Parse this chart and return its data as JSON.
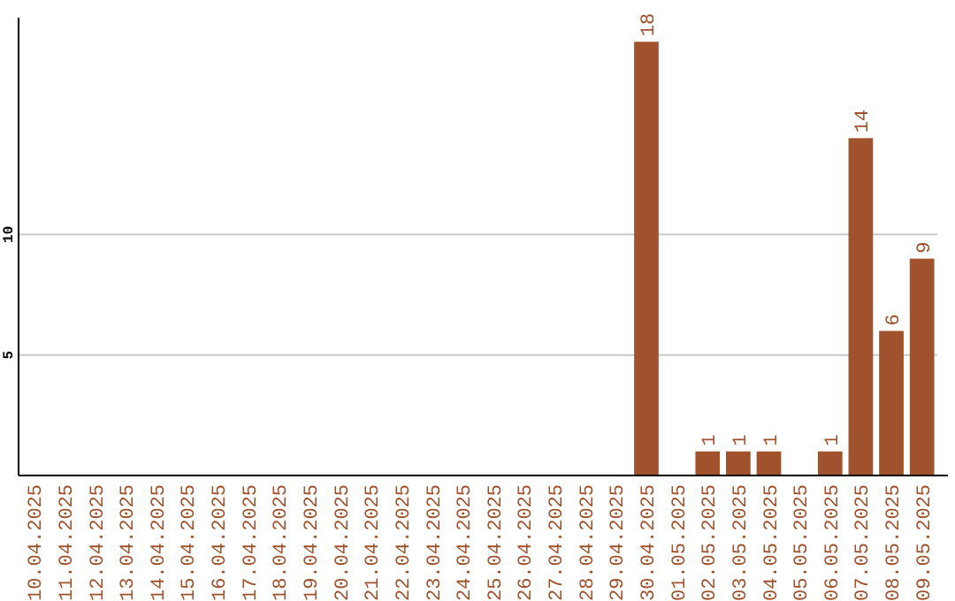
{
  "chart_data": {
    "type": "bar",
    "categories": [
      "10.04.2025",
      "11.04.2025",
      "12.04.2025",
      "13.04.2025",
      "14.04.2025",
      "15.04.2025",
      "16.04.2025",
      "17.04.2025",
      "18.04.2025",
      "19.04.2025",
      "20.04.2025",
      "21.04.2025",
      "22.04.2025",
      "23.04.2025",
      "24.04.2025",
      "25.04.2025",
      "26.04.2025",
      "27.04.2025",
      "28.04.2025",
      "29.04.2025",
      "30.04.2025",
      "01.05.2025",
      "02.05.2025",
      "03.05.2025",
      "04.05.2025",
      "05.05.2025",
      "06.05.2025",
      "07.05.2025",
      "08.05.2025",
      "09.05.2025"
    ],
    "values": [
      null,
      null,
      null,
      null,
      null,
      null,
      null,
      null,
      null,
      null,
      null,
      null,
      null,
      null,
      null,
      null,
      null,
      null,
      null,
      null,
      18,
      null,
      1,
      1,
      1,
      null,
      1,
      14,
      6,
      9
    ],
    "color": "#a0522d",
    "ylim": [
      0,
      19
    ],
    "yticks": [
      5,
      10
    ],
    "grid": "y",
    "data_labels": true
  }
}
